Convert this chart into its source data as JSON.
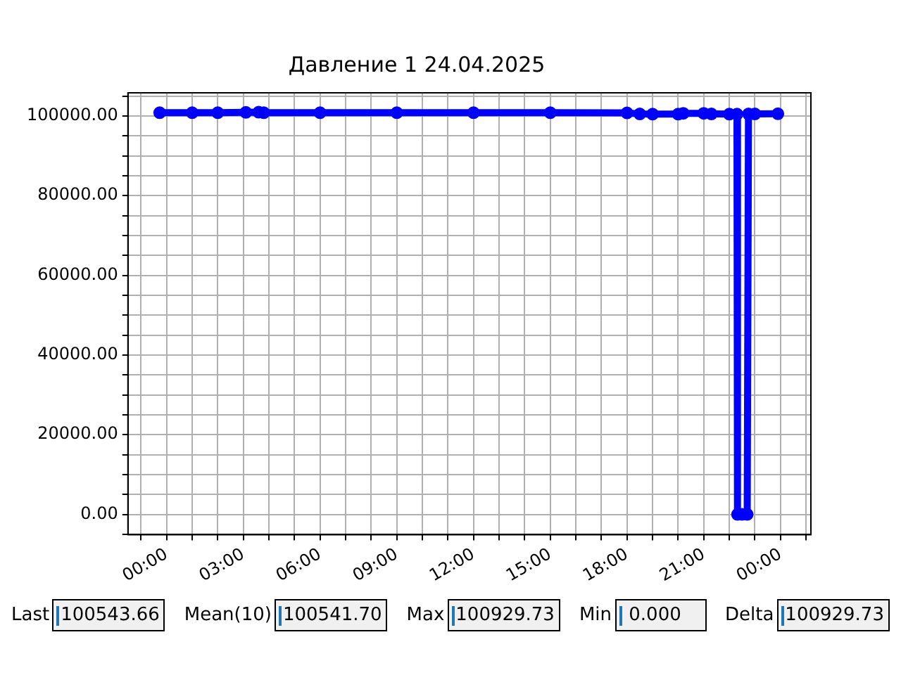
{
  "chart_data": {
    "type": "line",
    "title": "Давление 1 24.04.2025",
    "x": [
      -0.27,
      1,
      2,
      3.1,
      3.6,
      3.8,
      6,
      9,
      12,
      15,
      18,
      18.5,
      19,
      20,
      20.2,
      21,
      21.3,
      22,
      22.3,
      22.32,
      22.5,
      22.7,
      22.75,
      23,
      23.9
    ],
    "series": [
      {
        "color": "#0000ff",
        "values": [
          100800,
          100800,
          100800,
          100900,
          100929.73,
          100800,
          100800,
          100800,
          100800,
          100800,
          100750,
          100500,
          100450,
          100450,
          100650,
          100650,
          100500,
          100450,
          100450,
          0,
          0,
          0,
          100500,
          100500,
          100543.66
        ]
      }
    ],
    "xlim": [
      -1.51,
      25.19
    ],
    "xticks": [
      {
        "value": -1,
        "label": null
      },
      {
        "value": 0,
        "label": "00:00"
      },
      {
        "value": 1,
        "label": null
      },
      {
        "value": 2,
        "label": null
      },
      {
        "value": 3,
        "label": "03:00"
      },
      {
        "value": 4,
        "label": null
      },
      {
        "value": 5,
        "label": null
      },
      {
        "value": 6,
        "label": "06:00"
      },
      {
        "value": 7,
        "label": null
      },
      {
        "value": 8,
        "label": null
      },
      {
        "value": 9,
        "label": "09:00"
      },
      {
        "value": 10,
        "label": null
      },
      {
        "value": 11,
        "label": null
      },
      {
        "value": 12,
        "label": "12:00"
      },
      {
        "value": 13,
        "label": null
      },
      {
        "value": 14,
        "label": null
      },
      {
        "value": 15,
        "label": "15:00"
      },
      {
        "value": 16,
        "label": null
      },
      {
        "value": 17,
        "label": null
      },
      {
        "value": 18,
        "label": "18:00"
      },
      {
        "value": 19,
        "label": null
      },
      {
        "value": 20,
        "label": null
      },
      {
        "value": 21,
        "label": "21:00"
      },
      {
        "value": 22,
        "label": null
      },
      {
        "value": 23,
        "label": null
      },
      {
        "value": 24,
        "label": "00:00"
      },
      {
        "value": 25,
        "label": null
      }
    ],
    "ylim": [
      -5100,
      105800
    ],
    "yticks": [
      {
        "value": -5000,
        "label": null
      },
      {
        "value": 0,
        "label": "0.00"
      },
      {
        "value": 5000,
        "label": null
      },
      {
        "value": 10000,
        "label": null
      },
      {
        "value": 15000,
        "label": null
      },
      {
        "value": 20000,
        "label": "20000.00"
      },
      {
        "value": 25000,
        "label": null
      },
      {
        "value": 30000,
        "label": null
      },
      {
        "value": 35000,
        "label": null
      },
      {
        "value": 40000,
        "label": "40000.00"
      },
      {
        "value": 45000,
        "label": null
      },
      {
        "value": 50000,
        "label": null
      },
      {
        "value": 55000,
        "label": null
      },
      {
        "value": 60000,
        "label": "60000.00"
      },
      {
        "value": 65000,
        "label": null
      },
      {
        "value": 70000,
        "label": null
      },
      {
        "value": 75000,
        "label": null
      },
      {
        "value": 80000,
        "label": "80000.00"
      },
      {
        "value": 85000,
        "label": null
      },
      {
        "value": 90000,
        "label": null
      },
      {
        "value": 95000,
        "label": null
      },
      {
        "value": 100000,
        "label": "100000.00"
      },
      {
        "value": 105000,
        "label": null
      }
    ],
    "grid": true,
    "marker": "circle",
    "line_style": "solid",
    "annotations": [
      "Last",
      "100543.66",
      "Mean(10)",
      "100541.70",
      "Max",
      "100929.73",
      "Min",
      " 0.000",
      "Delta",
      "100929.73"
    ]
  }
}
